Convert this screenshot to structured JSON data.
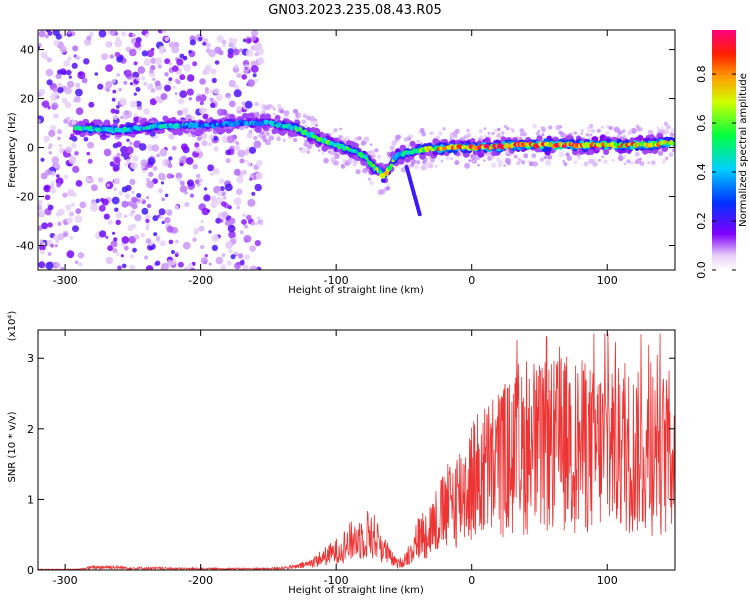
{
  "title": "GN03.2023.235.08.43.R05",
  "chart_data": [
    {
      "type": "heatmap",
      "title": "GN03.2023.235.08.43.R05",
      "xlabel": "Height of straight line (km)",
      "ylabel": "Frequency (Hz)",
      "xlim": [
        -320,
        150
      ],
      "ylim": [
        -50,
        48
      ],
      "x_ticks": [
        -300,
        -200,
        -100,
        0,
        100
      ],
      "y_ticks": [
        -40,
        -20,
        0,
        20,
        40
      ],
      "x_tick_labels": [
        "-300",
        "-200",
        "-100",
        "0",
        "100"
      ],
      "y_tick_labels": [
        "-40",
        "-20",
        "0",
        "20",
        "40"
      ],
      "colorbar": {
        "label": "Normalized spectral amplitude",
        "range": [
          0,
          0.98
        ],
        "ticks": [
          0.0,
          0.2,
          0.4,
          0.6,
          0.8
        ],
        "tick_labels": [
          "0.0",
          "0.2",
          "0.4",
          "0.6",
          "0.8"
        ],
        "colormap": "rainbow (purple-blue-cyan-green-yellow-red-pink)"
      },
      "features": {
        "noise_region_x": [
          -320,
          -155
        ],
        "ridge": [
          {
            "x": -290,
            "y": 8,
            "amp": 0.5
          },
          {
            "x": -260,
            "y": 7,
            "amp": 0.45
          },
          {
            "x": -230,
            "y": 9,
            "amp": 0.45
          },
          {
            "x": -200,
            "y": 9,
            "amp": 0.35
          },
          {
            "x": -170,
            "y": 10,
            "amp": 0.35
          },
          {
            "x": -150,
            "y": 10,
            "amp": 0.4
          },
          {
            "x": -130,
            "y": 8,
            "amp": 0.5
          },
          {
            "x": -110,
            "y": 3,
            "amp": 0.55
          },
          {
            "x": -95,
            "y": 0,
            "amp": 0.55
          },
          {
            "x": -80,
            "y": -3,
            "amp": 0.5
          },
          {
            "x": -65,
            "y": -12,
            "amp": 0.7
          },
          {
            "x": -55,
            "y": -3,
            "amp": 0.5
          },
          {
            "x": -40,
            "y": -1,
            "amp": 0.55
          },
          {
            "x": -20,
            "y": 0,
            "amp": 0.8
          },
          {
            "x": 0,
            "y": 0,
            "amp": 0.85
          },
          {
            "x": 40,
            "y": 1,
            "amp": 0.9
          },
          {
            "x": 80,
            "y": 1,
            "amp": 0.85
          },
          {
            "x": 120,
            "y": 1,
            "amp": 0.8
          },
          {
            "x": 150,
            "y": 2,
            "amp": 0.7
          }
        ]
      }
    },
    {
      "type": "line",
      "xlabel": "Height of straight line (km)",
      "ylabel": "SNR (10 * v/v)",
      "y_scale_note": "(x10⁴)",
      "xlim": [
        -320,
        150
      ],
      "ylim": [
        0,
        3.4
      ],
      "x_ticks": [
        -300,
        -200,
        -100,
        0,
        100
      ],
      "y_ticks": [
        0,
        1,
        2,
        3
      ],
      "x_tick_labels": [
        "-300",
        "-200",
        "-100",
        "0",
        "100"
      ],
      "y_tick_labels": [
        "0",
        "1",
        "2",
        "3"
      ],
      "color": "#ee3333",
      "envelope": {
        "x": [
          -320,
          -290,
          -280,
          -270,
          -250,
          -200,
          -180,
          -150,
          -130,
          -120,
          -110,
          -100,
          -90,
          -80,
          -75,
          -70,
          -65,
          -60,
          -55,
          -50,
          -45,
          -40,
          -30,
          -20,
          -10,
          0,
          10,
          20,
          30,
          40,
          50,
          60,
          70,
          80,
          90,
          100,
          110,
          120,
          130,
          140,
          150
        ],
        "y": [
          0.01,
          0.01,
          0.04,
          0.05,
          0.03,
          0.02,
          0.02,
          0.02,
          0.05,
          0.1,
          0.2,
          0.3,
          0.45,
          0.55,
          0.6,
          0.5,
          0.35,
          0.2,
          0.1,
          0.15,
          0.3,
          0.5,
          0.7,
          0.95,
          1.2,
          1.45,
          1.6,
          1.75,
          1.85,
          1.9,
          1.95,
          2.0,
          2.05,
          2.0,
          1.95,
          2.0,
          1.95,
          1.9,
          1.85,
          1.9,
          1.9
        ]
      },
      "peak_max": 3.35
    }
  ]
}
